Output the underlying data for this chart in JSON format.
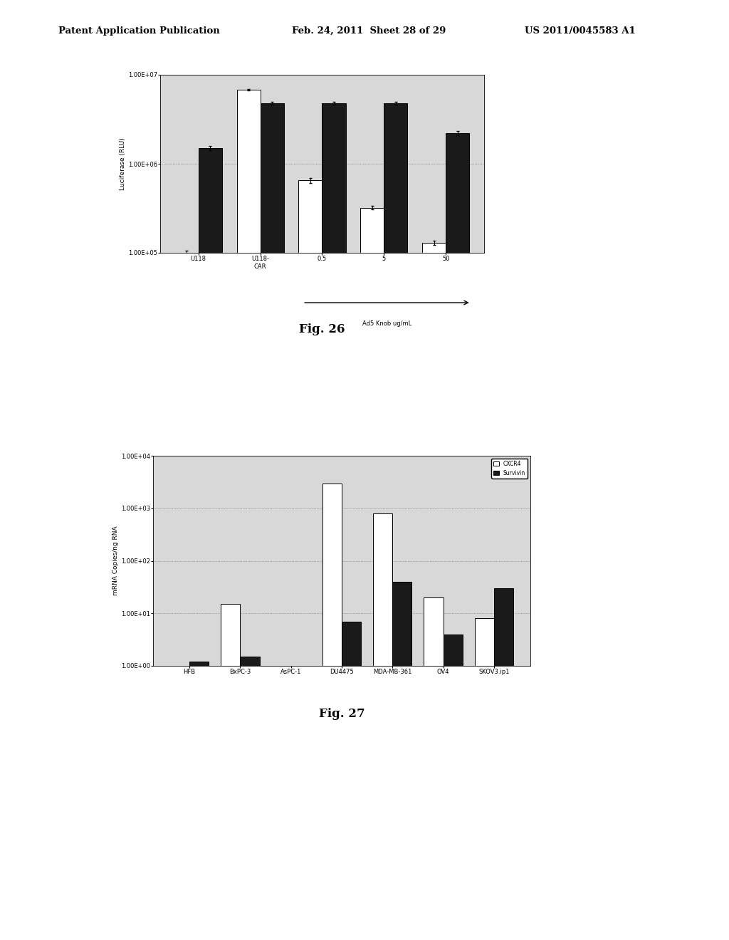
{
  "fig26": {
    "title": "Fig. 26",
    "ylabel": "Luciferase (RLU)",
    "xlabel_note": "Ad5 Knob ug/mL",
    "categories": [
      "U118",
      "U118-\nCAR",
      "0.5",
      "5",
      "50"
    ],
    "white_bars": [
      100000.0,
      6800000.0,
      650000.0,
      320000.0,
      130000.0
    ],
    "black_bars": [
      1500000.0,
      4800000.0,
      4800000.0,
      4800000.0,
      2200000.0
    ],
    "white_errors": [
      5000,
      150000.0,
      40000.0,
      15000.0,
      8000
    ],
    "black_errors": [
      80000.0,
      150000.0,
      150000.0,
      150000.0,
      120000.0
    ],
    "ylim": [
      100000.0,
      10000000.0
    ],
    "yticks": [
      100000.0,
      1000000.0,
      10000000.0
    ],
    "yticklabels": [
      "1.00E+05",
      "1.00E+06",
      "1.00E+07"
    ]
  },
  "fig27": {
    "title": "Fig. 27",
    "ylabel": "mRNA Copies/ng RNA",
    "categories": [
      "HFB",
      "BxPC-3",
      "AsPC-1",
      "DU4475",
      "MDA-MB-361",
      "OV4",
      "SKOV3.ip1"
    ],
    "white_bars": [
      1.0,
      15.0,
      1.0,
      3000.0,
      800.0,
      20.0,
      8.0
    ],
    "black_bars": [
      1.2,
      1.5,
      1.0,
      7.0,
      40.0,
      4.0,
      30.0
    ],
    "ylim": [
      1.0,
      10000.0
    ],
    "yticks": [
      1.0,
      10.0,
      100.0,
      1000.0,
      10000.0
    ],
    "yticklabels": [
      "1.00E+00",
      "1.00E+01",
      "1.00E+02",
      "1.00E+03",
      "1.00E+04"
    ],
    "legend_labels": [
      "CXCR4",
      "Survivin"
    ]
  },
  "header_left": "Patent Application Publication",
  "header_mid": "Feb. 24, 2011  Sheet 28 of 29",
  "header_right": "US 2011/0045583 A1",
  "bg_color": "#d8d8d8",
  "bar_color_white": "#ffffff",
  "bar_color_black": "#1a1a1a",
  "page_bg": "#ffffff"
}
